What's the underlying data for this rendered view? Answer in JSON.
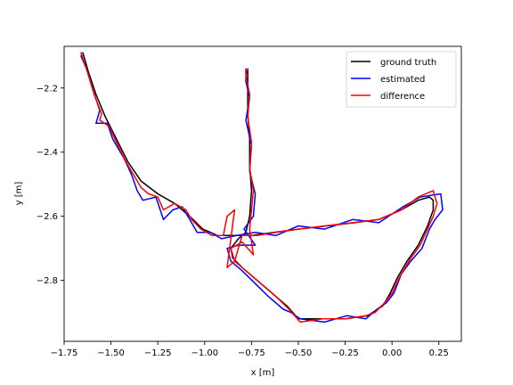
{
  "chart_data": {
    "type": "line",
    "title": "",
    "xlabel": "x [m]",
    "ylabel": "y [m]",
    "xlim": [
      -1.75,
      0.37
    ],
    "ylim": [
      -2.99,
      -2.07
    ],
    "xticks": [
      -1.75,
      -1.5,
      -1.25,
      -1.0,
      -0.75,
      -0.5,
      -0.25,
      0.0,
      0.25
    ],
    "xtick_labels": [
      "−1.75",
      "−1.50",
      "−1.25",
      "−1.00",
      "−0.75",
      "−0.50",
      "−0.25",
      "0.00",
      "0.25"
    ],
    "yticks": [
      -2.8,
      -2.6,
      -2.4,
      -2.2
    ],
    "ytick_labels": [
      "−2.8",
      "−2.6",
      "−2.4",
      "−2.2"
    ],
    "grid": false,
    "legend_position": "top-right",
    "series": [
      {
        "name": "ground truth",
        "color": "#000000",
        "points": [
          [
            -1.65,
            -2.09
          ],
          [
            -1.62,
            -2.15
          ],
          [
            -1.58,
            -2.22
          ],
          [
            -1.53,
            -2.29
          ],
          [
            -1.47,
            -2.36
          ],
          [
            -1.41,
            -2.43
          ],
          [
            -1.34,
            -2.49
          ],
          [
            -1.25,
            -2.53
          ],
          [
            -1.16,
            -2.56
          ],
          [
            -1.08,
            -2.6
          ],
          [
            -1.01,
            -2.64
          ],
          [
            -0.93,
            -2.66
          ],
          [
            -0.85,
            -2.66
          ],
          [
            -0.75,
            -2.66
          ],
          [
            -0.63,
            -2.65
          ],
          [
            -0.5,
            -2.64
          ],
          [
            -0.35,
            -2.63
          ],
          [
            -0.2,
            -2.62
          ],
          [
            -0.07,
            -2.61
          ],
          [
            0.05,
            -2.58
          ],
          [
            0.14,
            -2.55
          ],
          [
            0.2,
            -2.54
          ],
          [
            0.22,
            -2.55
          ],
          [
            0.22,
            -2.58
          ],
          [
            0.19,
            -2.63
          ],
          [
            0.14,
            -2.69
          ],
          [
            0.08,
            -2.74
          ],
          [
            0.03,
            -2.79
          ],
          [
            -0.01,
            -2.84
          ],
          [
            -0.05,
            -2.88
          ],
          [
            -0.13,
            -2.91
          ],
          [
            -0.25,
            -2.92
          ],
          [
            -0.38,
            -2.92
          ],
          [
            -0.5,
            -2.92
          ],
          [
            -0.56,
            -2.88
          ],
          [
            -0.64,
            -2.84
          ],
          [
            -0.72,
            -2.8
          ],
          [
            -0.8,
            -2.76
          ],
          [
            -0.85,
            -2.73
          ],
          [
            -0.86,
            -2.7
          ],
          [
            -0.82,
            -2.67
          ],
          [
            -0.78,
            -2.65
          ],
          [
            -0.76,
            -2.6
          ],
          [
            -0.75,
            -2.52
          ],
          [
            -0.76,
            -2.44
          ],
          [
            -0.76,
            -2.36
          ],
          [
            -0.77,
            -2.28
          ],
          [
            -0.77,
            -2.2
          ],
          [
            -0.77,
            -2.14
          ]
        ]
      },
      {
        "name": "estimated",
        "color": "#0000ff",
        "points": [
          [
            -1.66,
            -2.1
          ],
          [
            -1.63,
            -2.14
          ],
          [
            -1.6,
            -2.2
          ],
          [
            -1.56,
            -2.27
          ],
          [
            -1.58,
            -2.31
          ],
          [
            -1.52,
            -2.31
          ],
          [
            -1.49,
            -2.36
          ],
          [
            -1.43,
            -2.42
          ],
          [
            -1.39,
            -2.47
          ],
          [
            -1.36,
            -2.52
          ],
          [
            -1.33,
            -2.55
          ],
          [
            -1.26,
            -2.54
          ],
          [
            -1.22,
            -2.61
          ],
          [
            -1.17,
            -2.58
          ],
          [
            -1.12,
            -2.57
          ],
          [
            -1.08,
            -2.61
          ],
          [
            -1.04,
            -2.65
          ],
          [
            -0.97,
            -2.65
          ],
          [
            -0.91,
            -2.67
          ],
          [
            -0.83,
            -2.66
          ],
          [
            -0.73,
            -2.65
          ],
          [
            -0.62,
            -2.66
          ],
          [
            -0.5,
            -2.63
          ],
          [
            -0.36,
            -2.64
          ],
          [
            -0.21,
            -2.61
          ],
          [
            -0.07,
            -2.62
          ],
          [
            0.06,
            -2.57
          ],
          [
            0.15,
            -2.54
          ],
          [
            0.26,
            -2.53
          ],
          [
            0.27,
            -2.58
          ],
          [
            0.23,
            -2.61
          ],
          [
            0.2,
            -2.64
          ],
          [
            0.16,
            -2.7
          ],
          [
            0.1,
            -2.74
          ],
          [
            0.05,
            -2.78
          ],
          [
            0.01,
            -2.84
          ],
          [
            -0.03,
            -2.87
          ],
          [
            -0.08,
            -2.89
          ],
          [
            -0.14,
            -2.92
          ],
          [
            -0.24,
            -2.91
          ],
          [
            -0.36,
            -2.93
          ],
          [
            -0.49,
            -2.92
          ],
          [
            -0.54,
            -2.9
          ],
          [
            -0.58,
            -2.89
          ],
          [
            -0.66,
            -2.85
          ],
          [
            -0.73,
            -2.81
          ],
          [
            -0.8,
            -2.77
          ],
          [
            -0.86,
            -2.74
          ],
          [
            -0.88,
            -2.7
          ],
          [
            -0.82,
            -2.69
          ],
          [
            -0.73,
            -2.69
          ],
          [
            -0.79,
            -2.64
          ],
          [
            -0.74,
            -2.6
          ],
          [
            -0.73,
            -2.53
          ],
          [
            -0.76,
            -2.46
          ],
          [
            -0.75,
            -2.38
          ],
          [
            -0.78,
            -2.3
          ],
          [
            -0.76,
            -2.23
          ],
          [
            -0.78,
            -2.18
          ],
          [
            -0.78,
            -2.14
          ]
        ]
      },
      {
        "name": "difference",
        "color": "#ff0000",
        "points": [
          [
            -1.66,
            -2.09
          ],
          [
            -1.62,
            -2.16
          ],
          [
            -1.59,
            -2.22
          ],
          [
            -1.55,
            -2.28
          ],
          [
            -1.56,
            -2.3
          ],
          [
            -1.51,
            -2.32
          ],
          [
            -1.47,
            -2.37
          ],
          [
            -1.42,
            -2.43
          ],
          [
            -1.37,
            -2.48
          ],
          [
            -1.34,
            -2.51
          ],
          [
            -1.3,
            -2.53
          ],
          [
            -1.25,
            -2.54
          ],
          [
            -1.22,
            -2.58
          ],
          [
            -1.16,
            -2.56
          ],
          [
            -1.1,
            -2.58
          ],
          [
            -1.07,
            -2.61
          ],
          [
            -1.02,
            -2.64
          ],
          [
            -0.96,
            -2.66
          ],
          [
            -0.9,
            -2.66
          ],
          [
            -0.88,
            -2.6
          ],
          [
            -0.84,
            -2.58
          ],
          [
            -0.88,
            -2.76
          ],
          [
            -0.84,
            -2.74
          ],
          [
            -0.8,
            -2.66
          ],
          [
            -0.72,
            -2.66
          ],
          [
            -0.62,
            -2.65
          ],
          [
            -0.5,
            -2.64
          ],
          [
            -0.36,
            -2.63
          ],
          [
            -0.21,
            -2.62
          ],
          [
            -0.07,
            -2.61
          ],
          [
            0.05,
            -2.58
          ],
          [
            0.14,
            -2.54
          ],
          [
            0.22,
            -2.52
          ],
          [
            0.24,
            -2.56
          ],
          [
            0.22,
            -2.6
          ],
          [
            0.19,
            -2.64
          ],
          [
            0.15,
            -2.69
          ],
          [
            0.09,
            -2.74
          ],
          [
            0.04,
            -2.79
          ],
          [
            0.0,
            -2.84
          ],
          [
            -0.04,
            -2.87
          ],
          [
            -0.09,
            -2.9
          ],
          [
            -0.14,
            -2.91
          ],
          [
            -0.25,
            -2.92
          ],
          [
            -0.37,
            -2.92
          ],
          [
            -0.49,
            -2.93
          ],
          [
            -0.55,
            -2.89
          ],
          [
            -0.62,
            -2.85
          ],
          [
            -0.7,
            -2.81
          ],
          [
            -0.78,
            -2.77
          ],
          [
            -0.84,
            -2.74
          ],
          [
            -0.86,
            -2.7
          ],
          [
            -0.8,
            -2.68
          ],
          [
            -0.74,
            -2.72
          ],
          [
            -0.76,
            -2.64
          ],
          [
            -0.75,
            -2.58
          ],
          [
            -0.74,
            -2.52
          ],
          [
            -0.76,
            -2.45
          ],
          [
            -0.75,
            -2.37
          ],
          [
            -0.77,
            -2.29
          ],
          [
            -0.76,
            -2.22
          ],
          [
            -0.78,
            -2.16
          ],
          [
            -0.77,
            -2.14
          ]
        ]
      }
    ]
  }
}
